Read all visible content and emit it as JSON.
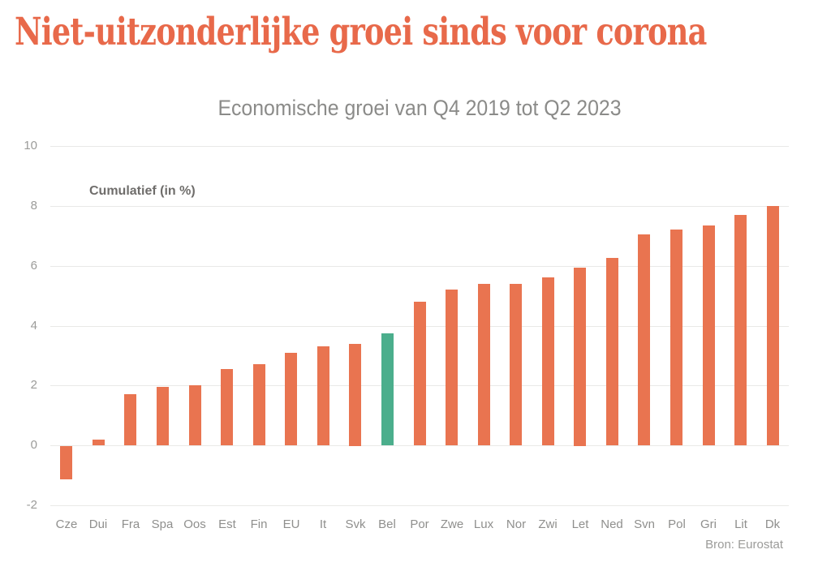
{
  "page": {
    "title": "Niet-uitzonderlijke groei sinds voor corona"
  },
  "chart_data": {
    "type": "bar",
    "title": "Economische groei van Q4 2019 tot Q2 2023",
    "axis_label": "Cumulatief (in %)",
    "xlabel": "",
    "ylabel": "Cumulatief (in %)",
    "categories": [
      "Cze",
      "Dui",
      "Fra",
      "Spa",
      "Oos",
      "Est",
      "Fin",
      "EU",
      "It",
      "Svk",
      "Bel",
      "Por",
      "Zwe",
      "Lux",
      "Nor",
      "Zwi",
      "Let",
      "Ned",
      "Svn",
      "Pol",
      "Gri",
      "Lit",
      "Dk"
    ],
    "values": [
      -1.1,
      0.2,
      1.7,
      1.95,
      2.0,
      2.55,
      2.7,
      3.1,
      3.3,
      3.4,
      3.75,
      4.8,
      5.2,
      5.4,
      5.4,
      5.6,
      5.95,
      6.25,
      7.05,
      7.2,
      7.35,
      7.7,
      8.0
    ],
    "highlight_category": "Bel",
    "bar_color": "#e97450",
    "highlight_color": "#4bae8c",
    "title_color": "#e8694a",
    "ylim": [
      -2,
      10
    ],
    "yticks": [
      -2,
      0,
      2,
      4,
      6,
      8,
      10
    ],
    "grid": true,
    "legend": false,
    "source": "Bron: Eurostat"
  }
}
